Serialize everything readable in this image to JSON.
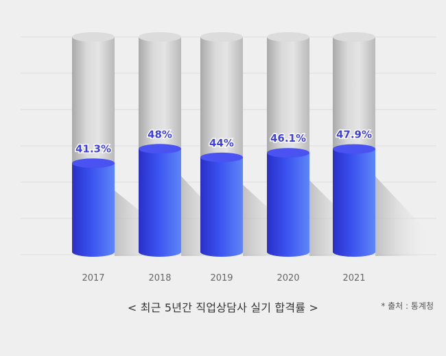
{
  "chart_data": {
    "type": "bar",
    "categories": [
      "2017",
      "2018",
      "2019",
      "2020",
      "2021"
    ],
    "values": [
      41.3,
      48,
      44,
      46.1,
      47.9
    ],
    "value_labels": [
      "41.3%",
      "48%",
      "44%",
      "46.1%",
      "47.9%"
    ],
    "ylim": [
      0,
      100
    ],
    "grid": true,
    "colors": {
      "bar_front": "#3a52f0",
      "bar_light": "#5f86f6",
      "bar_dark": "#2a2fc8",
      "bar_top": "#4a52f2",
      "track": "#d4d4d4",
      "track_top": "#dcdcdc",
      "label": "#3d3fe0",
      "tick": "#666666",
      "grid": "#dddddd"
    }
  },
  "caption": "< 최근 5년간 직업상담사 실기 합격률 >",
  "source": "* 출처 : 통계청"
}
